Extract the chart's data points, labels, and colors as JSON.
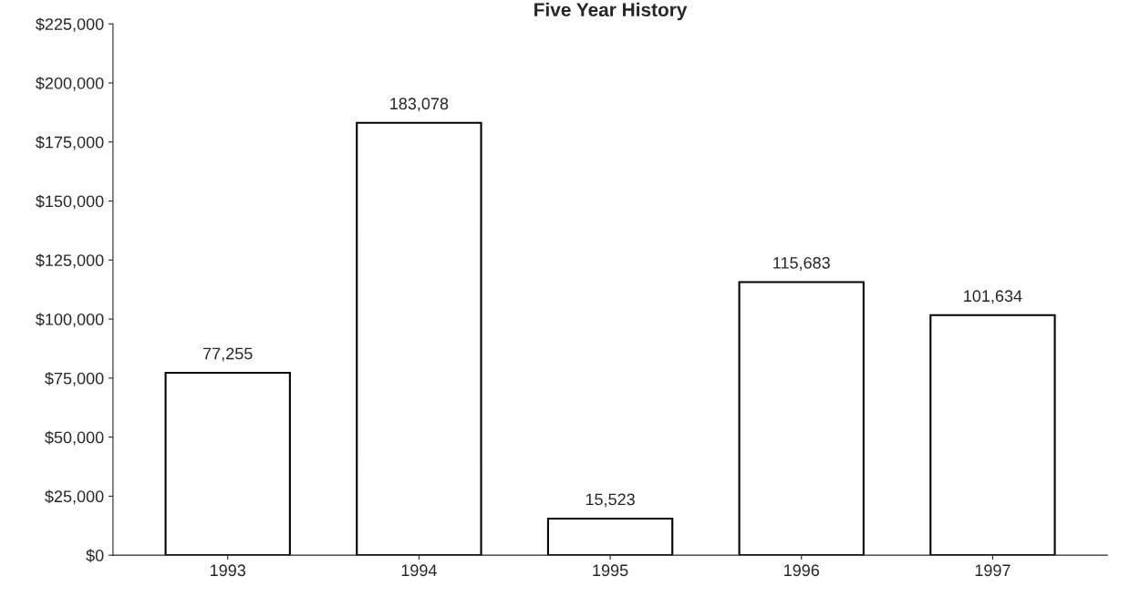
{
  "chart_data": {
    "type": "bar",
    "title": "Five Year History",
    "categories": [
      "1993",
      "1994",
      "1995",
      "1996",
      "1997"
    ],
    "values": [
      77255,
      183078,
      15523,
      115683,
      101634
    ],
    "value_labels": [
      "77,255",
      "183,078",
      "15,523",
      "115,683",
      "101,634"
    ],
    "color": "#ffffff",
    "ylim": [
      0,
      225000
    ],
    "yticks": [
      {
        "value": 0,
        "label": "$0"
      },
      {
        "value": 25000,
        "label": "$25,000"
      },
      {
        "value": 50000,
        "label": "$50,000"
      },
      {
        "value": 75000,
        "label": "$75,000"
      },
      {
        "value": 100000,
        "label": "$100,000"
      },
      {
        "value": 125000,
        "label": "$125,000"
      },
      {
        "value": 150000,
        "label": "$150,000"
      },
      {
        "value": 175000,
        "label": "$175,000"
      },
      {
        "value": 200000,
        "label": "$200,000"
      },
      {
        "value": 225000,
        "label": "$225,000"
      }
    ],
    "grid": false
  }
}
